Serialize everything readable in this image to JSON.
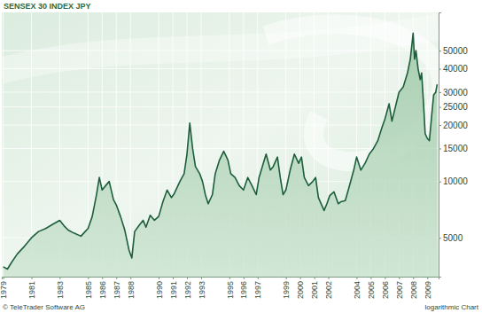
{
  "chart_data": {
    "type": "area",
    "title": "SENSEX 30 INDEX JPY",
    "annotations": [
      "© TeleTrader Software AG",
      "logarithmic Chart"
    ],
    "color": "#1d5e3c",
    "log": "y",
    "grid": true,
    "xlim": [
      1978.9,
      2009.8
    ],
    "ylim": [
      3100,
      80000
    ],
    "xticks": [
      1979,
      1981,
      1983,
      1985,
      1986,
      1987,
      1988,
      1990,
      1991,
      1992,
      1993,
      1995,
      1996,
      1997,
      1999,
      2000,
      2001,
      2002,
      2004,
      2005,
      2006,
      2007,
      2008,
      2009
    ],
    "yticks": [
      5000,
      10000,
      15000,
      20000,
      25000,
      30000,
      40000,
      50000
    ],
    "x": [
      1979.0,
      1979.3,
      1979.6,
      1980.0,
      1980.5,
      1981.0,
      1981.5,
      1982.0,
      1982.5,
      1983.0,
      1983.3,
      1983.6,
      1984.0,
      1984.5,
      1984.8,
      1985.0,
      1985.3,
      1985.6,
      1985.8,
      1986.0,
      1986.3,
      1986.5,
      1986.8,
      1987.0,
      1987.3,
      1987.6,
      1987.9,
      1988.1,
      1988.3,
      1988.6,
      1988.9,
      1989.1,
      1989.4,
      1989.7,
      1990.0,
      1990.3,
      1990.6,
      1990.9,
      1991.1,
      1991.5,
      1991.8,
      1992.0,
      1992.2,
      1992.4,
      1992.6,
      1992.9,
      1993.1,
      1993.3,
      1993.5,
      1993.8,
      1994.0,
      1994.3,
      1994.6,
      1994.9,
      1995.1,
      1995.4,
      1995.7,
      1996.0,
      1996.3,
      1996.6,
      1996.9,
      1997.1,
      1997.4,
      1997.6,
      1997.9,
      1998.1,
      1998.4,
      1998.6,
      1998.8,
      1999.0,
      1999.3,
      1999.6,
      1999.9,
      2000.1,
      2000.3,
      2000.6,
      2000.9,
      2001.1,
      2001.3,
      2001.7,
      2001.9,
      2002.1,
      2002.4,
      2002.7,
      2002.9,
      2003.2,
      2003.5,
      2003.8,
      2004.0,
      2004.3,
      2004.6,
      2004.9,
      2005.2,
      2005.5,
      2005.8,
      2006.0,
      2006.3,
      2006.5,
      2006.8,
      2007.0,
      2007.3,
      2007.6,
      2007.8,
      2008.0,
      2008.1,
      2008.2,
      2008.35,
      2008.5,
      2008.6,
      2008.75,
      2008.85,
      2009.0,
      2009.15,
      2009.3,
      2009.45,
      2009.6,
      2009.7
    ],
    "values": [
      3500,
      3400,
      3700,
      4100,
      4500,
      5000,
      5400,
      5600,
      5900,
      6200,
      5800,
      5500,
      5300,
      5100,
      5400,
      5600,
      6500,
      8500,
      10500,
      9000,
      9600,
      10000,
      8000,
      7500,
      6500,
      5500,
      4300,
      3900,
      5400,
      5800,
      6200,
      5700,
      6600,
      6200,
      6500,
      7800,
      9000,
      8200,
      8600,
      10000,
      11000,
      14000,
      20500,
      15000,
      12000,
      11000,
      10000,
      8500,
      7600,
      8500,
      11000,
      13000,
      14500,
      13000,
      11000,
      10500,
      9500,
      9000,
      10500,
      9500,
      8500,
      10500,
      12500,
      14000,
      11500,
      12000,
      13500,
      10500,
      8500,
      9000,
      11500,
      14000,
      12500,
      13500,
      10500,
      9500,
      10000,
      10500,
      8200,
      7000,
      7600,
      8400,
      8800,
      7600,
      7800,
      7900,
      9500,
      11500,
      13500,
      11500,
      12500,
      14000,
      15000,
      16500,
      19500,
      21500,
      26000,
      21000,
      26000,
      30000,
      32000,
      38000,
      45000,
      62000,
      45000,
      50000,
      40000,
      35000,
      38000,
      25000,
      18000,
      17000,
      16500,
      22000,
      29000,
      30000,
      33000
    ]
  }
}
